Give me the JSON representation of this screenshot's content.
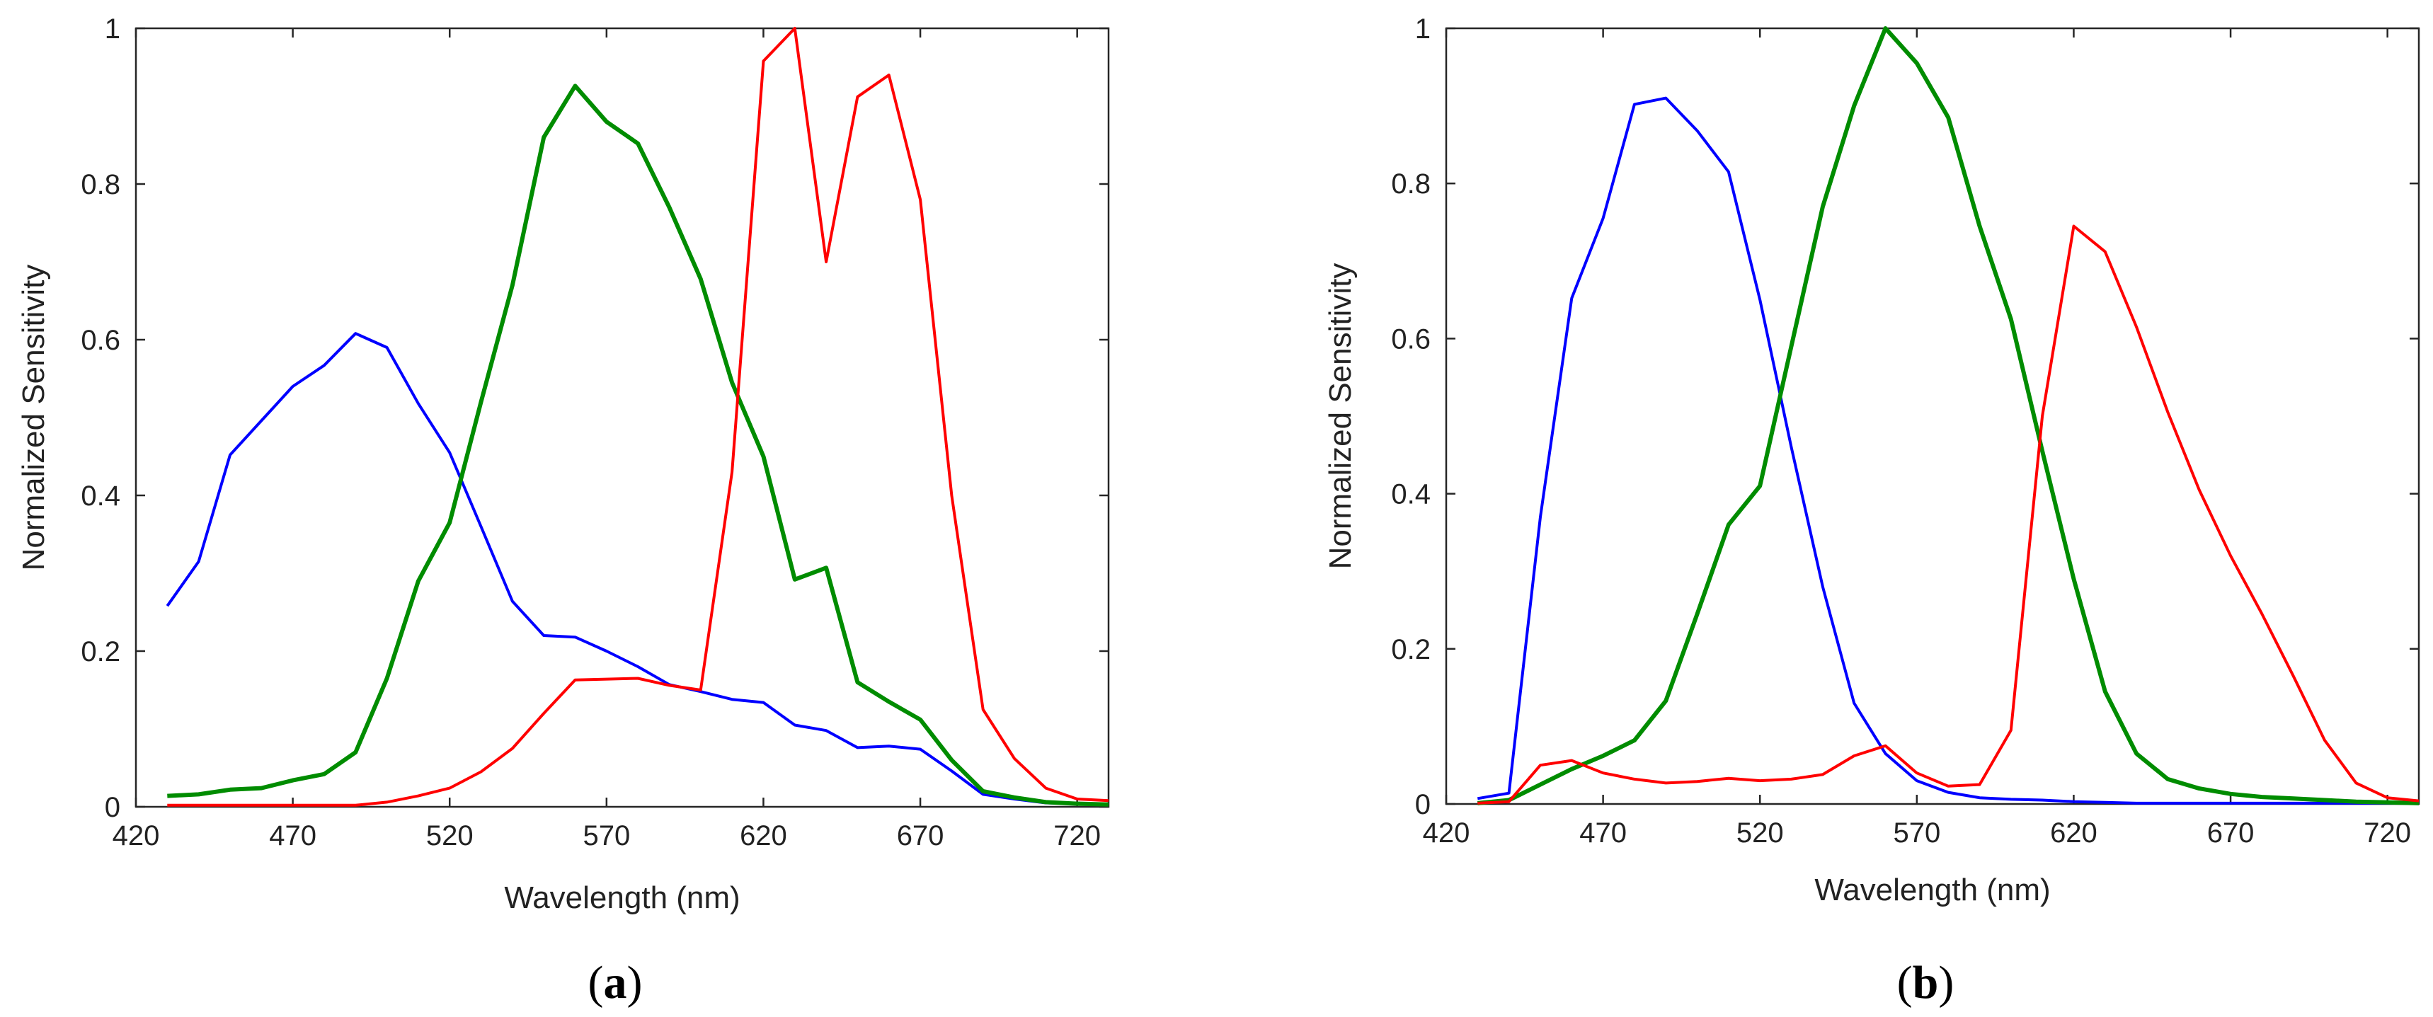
{
  "chart_data": [
    {
      "type": "line",
      "panel_label": "(a)",
      "panel_letter": "a",
      "xlabel": "Wavelength (nm)",
      "ylabel": "Normalized Sensitivity",
      "xlim": [
        420,
        730
      ],
      "ylim": [
        0,
        1
      ],
      "xticks": [
        "420",
        "470",
        "520",
        "570",
        "620",
        "670",
        "720"
      ],
      "yticks": [
        "0",
        "0.2",
        "0.4",
        "0.6",
        "0.8",
        "1"
      ],
      "x": [
        430,
        440,
        450,
        460,
        470,
        480,
        490,
        500,
        510,
        520,
        530,
        540,
        550,
        560,
        570,
        580,
        590,
        600,
        610,
        620,
        630,
        640,
        650,
        660,
        670,
        680,
        690,
        700,
        710,
        720,
        730
      ],
      "series": [
        {
          "name": "blue",
          "color": "#0000ff",
          "values": [
            0.258,
            0.315,
            0.452,
            0.496,
            0.54,
            0.567,
            0.608,
            0.59,
            0.518,
            0.455,
            0.36,
            0.264,
            0.22,
            0.218,
            0.2,
            0.18,
            0.157,
            0.148,
            0.138,
            0.134,
            0.105,
            0.098,
            0.076,
            0.078,
            0.074,
            0.046,
            0.016,
            0.01,
            0.005,
            0.004,
            0.003
          ]
        },
        {
          "name": "green",
          "color": "#008c00",
          "values": [
            0.014,
            0.016,
            0.022,
            0.024,
            0.034,
            0.042,
            0.07,
            0.165,
            0.29,
            0.365,
            0.52,
            0.67,
            0.86,
            0.926,
            0.88,
            0.852,
            0.77,
            0.678,
            0.545,
            0.45,
            0.292,
            0.307,
            0.16,
            0.135,
            0.112,
            0.06,
            0.02,
            0.012,
            0.006,
            0.004,
            0.003
          ]
        },
        {
          "name": "red",
          "color": "#ff0000",
          "values": [
            0.002,
            0.002,
            0.002,
            0.002,
            0.002,
            0.002,
            0.002,
            0.006,
            0.014,
            0.024,
            0.045,
            0.075,
            0.12,
            0.163,
            0.164,
            0.165,
            0.156,
            0.15,
            0.43,
            0.958,
            1.0,
            0.7,
            0.912,
            0.94,
            0.78,
            0.4,
            0.125,
            0.062,
            0.024,
            0.01,
            0.008
          ]
        }
      ]
    },
    {
      "type": "line",
      "panel_label": "(b)",
      "panel_letter": "b",
      "xlabel": "Wavelength (nm)",
      "ylabel": "Normalized Sensitivity",
      "xlim": [
        420,
        730
      ],
      "ylim": [
        0,
        1
      ],
      "xticks": [
        "420",
        "470",
        "520",
        "570",
        "620",
        "670",
        "720"
      ],
      "yticks": [
        "0",
        "0.2",
        "0.4",
        "0.6",
        "0.8",
        "1"
      ],
      "x": [
        430,
        440,
        450,
        460,
        470,
        480,
        490,
        500,
        510,
        520,
        530,
        540,
        550,
        560,
        570,
        580,
        590,
        600,
        610,
        620,
        630,
        640,
        650,
        660,
        670,
        680,
        690,
        700,
        710,
        720,
        730
      ],
      "series": [
        {
          "name": "blue",
          "color": "#0000ff",
          "values": [
            0.007,
            0.014,
            0.37,
            0.652,
            0.755,
            0.902,
            0.91,
            0.868,
            0.815,
            0.65,
            0.46,
            0.28,
            0.13,
            0.065,
            0.03,
            0.015,
            0.008,
            0.006,
            0.005,
            0.003,
            0.002,
            0.001,
            0.001,
            0.001,
            0.001,
            0.001,
            0.001,
            0.001,
            0.001,
            0.001,
            0.001
          ]
        },
        {
          "name": "green",
          "color": "#008c00",
          "values": [
            0.001,
            0.005,
            0.025,
            0.045,
            0.062,
            0.082,
            0.133,
            0.245,
            0.36,
            0.41,
            0.59,
            0.77,
            0.9,
            1.0,
            0.955,
            0.885,
            0.745,
            0.625,
            0.455,
            0.29,
            0.145,
            0.065,
            0.032,
            0.02,
            0.013,
            0.009,
            0.007,
            0.005,
            0.003,
            0.002,
            0.001
          ]
        },
        {
          "name": "red",
          "color": "#ff0000",
          "values": [
            0.001,
            0.003,
            0.05,
            0.056,
            0.04,
            0.032,
            0.027,
            0.029,
            0.033,
            0.03,
            0.032,
            0.038,
            0.062,
            0.075,
            0.04,
            0.023,
            0.025,
            0.095,
            0.5,
            0.745,
            0.712,
            0.615,
            0.505,
            0.405,
            0.32,
            0.245,
            0.165,
            0.082,
            0.027,
            0.008,
            0.004
          ]
        }
      ]
    }
  ]
}
